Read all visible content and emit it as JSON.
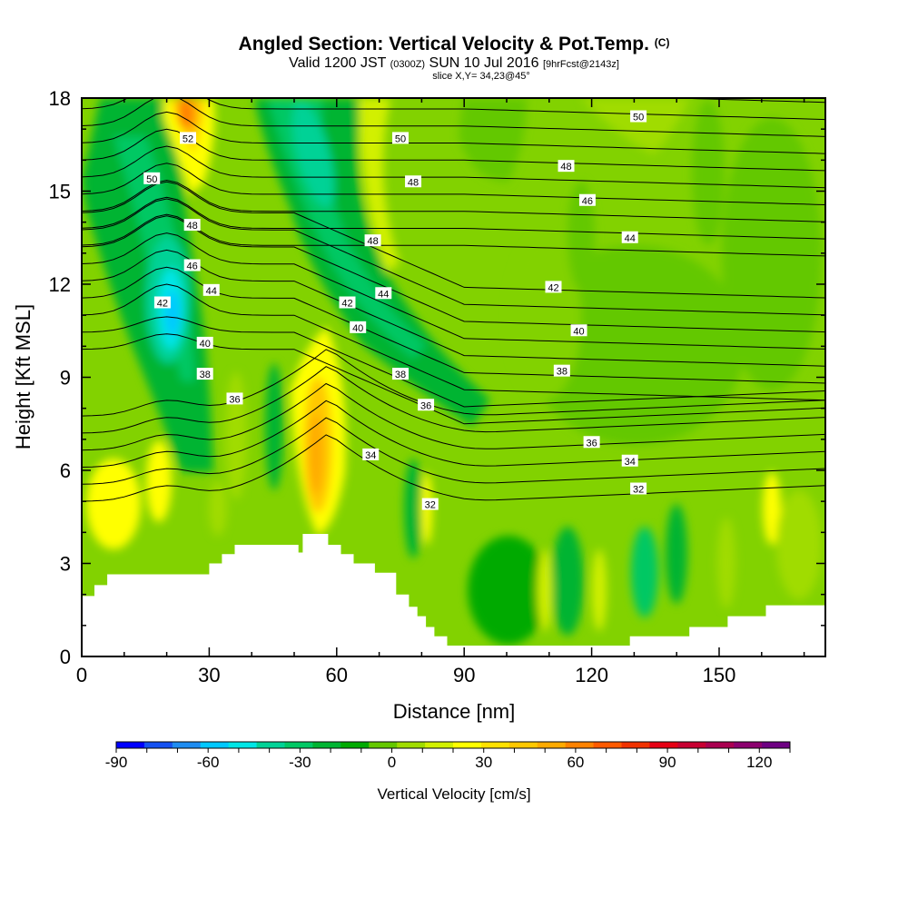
{
  "header": {
    "title": "Angled Section: Vertical Velocity & Pot.Temp.",
    "copyright": "(C)",
    "valid_prefix": "Valid 1200 JST",
    "valid_utc": "(0300Z)",
    "valid_date": "SUN 10 Jul 2016",
    "forecast": "[9hrFcst@2143z]",
    "slice": "slice X,Y= 34,23@45°"
  },
  "chart_data": {
    "type": "heatmap",
    "title": "Angled Section: Vertical Velocity & Pot.Temp.",
    "xlabel": "Distance [nm]",
    "ylabel": "Height [Kft MSL]",
    "xlim": [
      0,
      175
    ],
    "ylim": [
      0,
      18
    ],
    "x_ticks": [
      0,
      30,
      60,
      90,
      120,
      150
    ],
    "y_ticks": [
      0,
      3,
      6,
      9,
      12,
      15,
      18
    ],
    "colorbar": {
      "label": "Vertical Velocity [cm/s]",
      "min": -90,
      "max": 130,
      "step": 10,
      "ticks": [
        -90,
        -60,
        -30,
        0,
        30,
        60,
        90,
        120
      ],
      "colors": [
        "#0000ff",
        "#1450f0",
        "#1e8cf0",
        "#00c8ff",
        "#00e6e6",
        "#00d296",
        "#00c864",
        "#00b432",
        "#00aa00",
        "#64c800",
        "#a0dc00",
        "#d2f000",
        "#ffff00",
        "#ffe100",
        "#ffc800",
        "#ffaa00",
        "#ff8200",
        "#ff5a00",
        "#f03200",
        "#e60014",
        "#c80032",
        "#aa0050",
        "#8c006e",
        "#6e0082"
      ]
    },
    "contour_variable": "Potential temperature",
    "contour_labels": [
      {
        "value": "52",
        "x": 25,
        "y": 16.7
      },
      {
        "value": "50",
        "x": 16.5,
        "y": 15.4
      },
      {
        "value": "50",
        "x": 75,
        "y": 16.7
      },
      {
        "value": "50",
        "x": 131,
        "y": 17.4
      },
      {
        "value": "48",
        "x": 26,
        "y": 13.9
      },
      {
        "value": "48",
        "x": 78,
        "y": 15.3
      },
      {
        "value": "48",
        "x": 114,
        "y": 15.8
      },
      {
        "value": "48",
        "x": 68.5,
        "y": 13.4
      },
      {
        "value": "46",
        "x": 26,
        "y": 12.6
      },
      {
        "value": "46",
        "x": 119,
        "y": 14.7
      },
      {
        "value": "44",
        "x": 30.5,
        "y": 11.8
      },
      {
        "value": "44",
        "x": 71,
        "y": 11.7
      },
      {
        "value": "44",
        "x": 129,
        "y": 13.5
      },
      {
        "value": "42",
        "x": 19,
        "y": 11.4
      },
      {
        "value": "42",
        "x": 62.5,
        "y": 11.4
      },
      {
        "value": "42",
        "x": 111,
        "y": 11.9
      },
      {
        "value": "40",
        "x": 29,
        "y": 10.1
      },
      {
        "value": "40",
        "x": 65,
        "y": 10.6
      },
      {
        "value": "40",
        "x": 117,
        "y": 10.5
      },
      {
        "value": "38",
        "x": 29,
        "y": 9.1
      },
      {
        "value": "38",
        "x": 75,
        "y": 9.1
      },
      {
        "value": "38",
        "x": 113,
        "y": 9.2
      },
      {
        "value": "36",
        "x": 36,
        "y": 8.3
      },
      {
        "value": "36",
        "x": 81,
        "y": 8.1
      },
      {
        "value": "36",
        "x": 120,
        "y": 6.9
      },
      {
        "value": "34",
        "x": 68,
        "y": 6.5
      },
      {
        "value": "34",
        "x": 129,
        "y": 6.3
      },
      {
        "value": "32",
        "x": 82,
        "y": 4.9
      },
      {
        "value": "32",
        "x": 131,
        "y": 5.4
      }
    ],
    "terrain": [
      [
        0,
        1.95
      ],
      [
        3,
        1.95
      ],
      [
        3,
        2.3
      ],
      [
        6,
        2.3
      ],
      [
        6,
        2.65
      ],
      [
        30,
        2.65
      ],
      [
        30,
        3.0
      ],
      [
        33,
        3.0
      ],
      [
        33,
        3.3
      ],
      [
        36,
        3.3
      ],
      [
        36,
        3.6
      ],
      [
        51,
        3.6
      ],
      [
        51,
        3.35
      ],
      [
        52,
        3.35
      ],
      [
        52,
        3.95
      ],
      [
        58,
        3.95
      ],
      [
        58,
        3.6
      ],
      [
        61,
        3.6
      ],
      [
        61,
        3.3
      ],
      [
        64,
        3.3
      ],
      [
        64,
        3.0
      ],
      [
        69,
        3.0
      ],
      [
        69,
        2.7
      ],
      [
        74,
        2.7
      ],
      [
        74,
        2.0
      ],
      [
        77,
        2.0
      ],
      [
        77,
        1.6
      ],
      [
        79,
        1.6
      ],
      [
        79,
        1.3
      ],
      [
        81,
        1.3
      ],
      [
        81,
        0.95
      ],
      [
        83,
        0.95
      ],
      [
        83,
        0.65
      ],
      [
        86,
        0.65
      ],
      [
        86,
        0.35
      ],
      [
        129,
        0.35
      ],
      [
        129,
        0.65
      ],
      [
        143,
        0.65
      ],
      [
        143,
        0.95
      ],
      [
        152,
        0.95
      ],
      [
        152,
        1.3
      ],
      [
        161,
        1.3
      ],
      [
        161,
        1.65
      ],
      [
        175,
        1.65
      ]
    ]
  }
}
